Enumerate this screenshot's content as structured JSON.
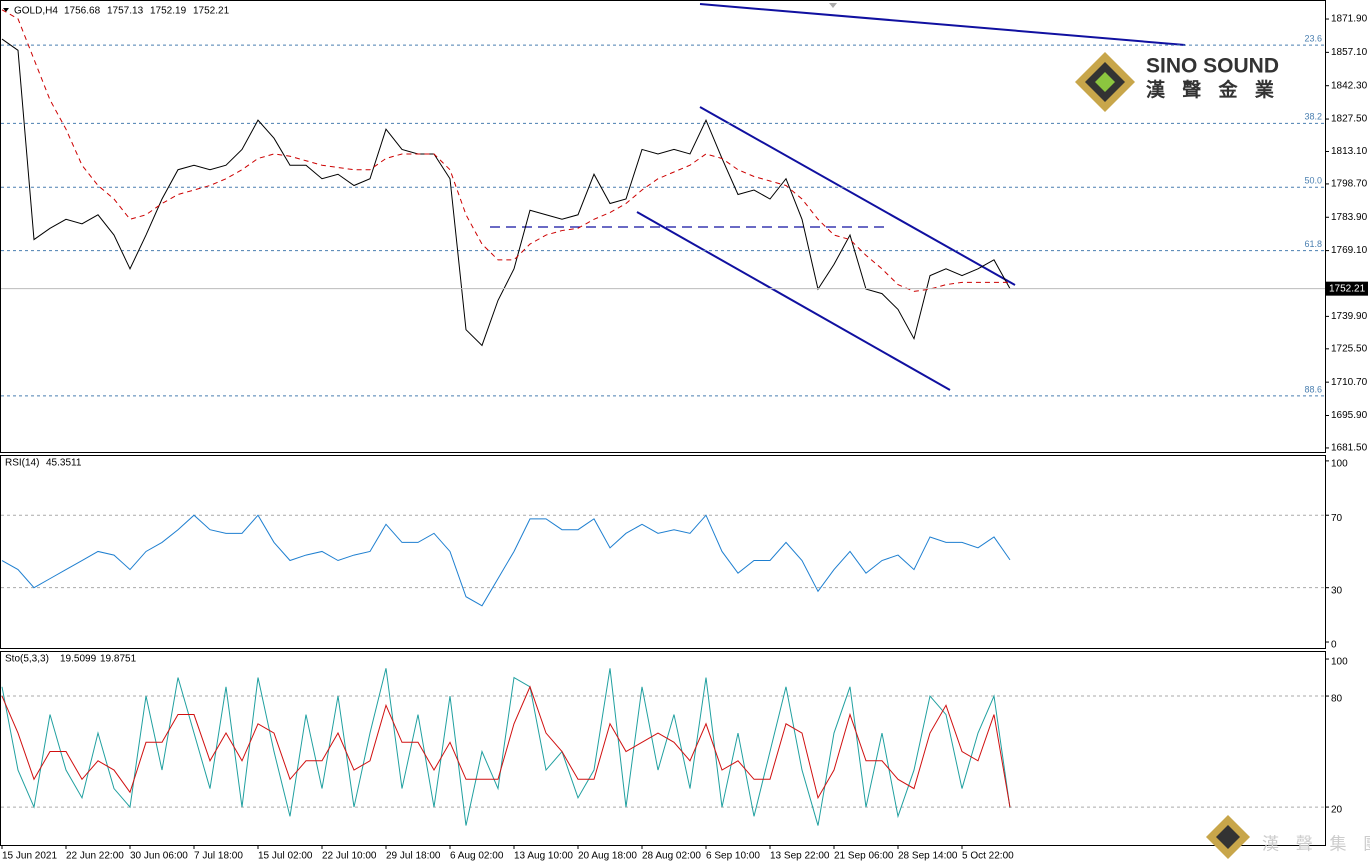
{
  "chart_data": [
    {
      "type": "line",
      "title": "GOLD,H4",
      "ohlc": [
        1756.68,
        1757.13,
        1752.19,
        1752.21
      ],
      "last_price": 1752.21,
      "categories": [
        "15 Jun 2021",
        null,
        null,
        null,
        "22 Jun 22:00",
        null,
        null,
        null,
        "30 Jun 06:00",
        null,
        null,
        null,
        "7 Jul 18:00",
        null,
        null,
        null,
        "15 Jul 02:00",
        null,
        null,
        null,
        "22 Jul 10:00",
        null,
        null,
        null,
        "29 Jul 18:00",
        null,
        null,
        null,
        "6 Aug 02:00",
        null,
        null,
        null,
        "13 Aug 10:00",
        null,
        null,
        null,
        "20 Aug 18:00",
        null,
        null,
        null,
        "28 Aug 02:00",
        null,
        null,
        null,
        "6 Sep 10:00",
        null,
        null,
        null,
        "13 Sep 22:00",
        null,
        null,
        null,
        "21 Sep 06:00",
        null,
        null,
        null,
        "28 Sep 14:00",
        null,
        null,
        null,
        "5 Oct 22:00",
        null,
        null,
        null
      ],
      "series": [
        {
          "color": "#000000",
          "values": [
            1863,
            1858,
            1774,
            1779,
            1783,
            1781,
            1785,
            1776,
            1761,
            1776,
            1792,
            1805,
            1807,
            1805,
            1807,
            1814,
            1827,
            1819,
            1807,
            1807,
            1801,
            1803,
            1798,
            1801,
            1823,
            1814,
            1812,
            1812,
            1801,
            1734,
            1727,
            1747,
            1761,
            1787,
            1785,
            1783,
            1785,
            1803,
            1790,
            1792,
            1814,
            1812,
            1814,
            1812,
            1827,
            1810,
            1794,
            1796,
            1792,
            1801,
            1783,
            1752,
            1763,
            1776,
            1752,
            1750,
            1743,
            1730,
            1758,
            1761,
            1758,
            1761,
            1765,
            1752.21
          ]
        },
        {
          "color": "#cc0000",
          "dashed": true,
          "values": [
            1876,
            1872,
            1854,
            1836,
            1823,
            1807,
            1798,
            1792,
            1783,
            1785,
            1790,
            1794,
            1796,
            1798,
            1801,
            1805,
            1810,
            1812,
            1811,
            1809,
            1807,
            1806,
            1805,
            1805,
            1810,
            1812,
            1812,
            1812,
            1805,
            1785,
            1772,
            1765,
            1765,
            1772,
            1776,
            1778,
            1779,
            1783,
            1786,
            1790,
            1796,
            1801,
            1804,
            1807,
            1812,
            1810,
            1805,
            1802,
            1800,
            1798,
            1792,
            1783,
            1776,
            1774,
            1767,
            1761,
            1754,
            1751,
            1752,
            1754,
            1755,
            1755,
            1755,
            1755
          ]
        }
      ],
      "ylim": [
        1679.7,
        1879.9
      ],
      "yticks": [
        {
          "value": 1871.9,
          "label": "1871.90"
        },
        {
          "value": 1857.1,
          "label": "1857.10"
        },
        {
          "value": 1842.3,
          "label": "1842.30"
        },
        {
          "value": 1827.5,
          "label": "1827.50"
        },
        {
          "value": 1813.1,
          "label": "1813.10"
        },
        {
          "value": 1798.7,
          "label": "1798.70"
        },
        {
          "value": 1783.9,
          "label": "1783.90"
        },
        {
          "value": 1769.1,
          "label": "1769.10"
        },
        {
          "value": 1739.9,
          "label": "1739.90"
        },
        {
          "value": 1725.5,
          "label": "1725.50"
        },
        {
          "value": 1710.7,
          "label": "1710.70"
        },
        {
          "value": 1695.9,
          "label": "1695.90"
        },
        {
          "value": 1681.5,
          "label": "1681.50"
        }
      ],
      "fib_levels": [
        {
          "label": "23.6",
          "price": 1860.3
        },
        {
          "label": "38.2",
          "price": 1825.6
        },
        {
          "label": "50.0",
          "price": 1797.2
        },
        {
          "label": "61.8",
          "price": 1769.1
        },
        {
          "label": "88.6",
          "price": 1704.6
        }
      ]
    },
    {
      "type": "line",
      "title": "RSI(14)",
      "current_value": 45.3511,
      "series": [
        {
          "color": "#1e7fd0",
          "values": [
            45,
            40,
            30,
            35,
            40,
            45,
            50,
            48,
            40,
            50,
            55,
            62,
            70,
            62,
            60,
            60,
            70,
            55,
            45,
            48,
            50,
            45,
            48,
            50,
            65,
            55,
            55,
            60,
            50,
            25,
            20,
            35,
            50,
            68,
            68,
            62,
            62,
            68,
            52,
            60,
            65,
            60,
            62,
            60,
            70,
            50,
            38,
            45,
            45,
            55,
            45,
            28,
            40,
            50,
            38,
            45,
            48,
            40,
            58,
            55,
            55,
            52,
            58,
            45.3511
          ]
        }
      ],
      "ylim": [
        -3.3,
        102.7
      ],
      "yticks": [
        0,
        30,
        70,
        100
      ],
      "levels": [
        30,
        70
      ]
    },
    {
      "type": "line",
      "title": "Sto(5,3,3)",
      "current_values": [
        19.5099,
        19.8751
      ],
      "series": [
        {
          "color": "#20a0a0",
          "values": [
            85,
            40,
            20,
            70,
            40,
            25,
            60,
            30,
            20,
            80,
            40,
            90,
            60,
            30,
            85,
            20,
            90,
            50,
            15,
            70,
            30,
            80,
            20,
            60,
            95,
            30,
            70,
            20,
            80,
            10,
            50,
            30,
            90,
            85,
            40,
            50,
            25,
            40,
            95,
            20,
            85,
            40,
            70,
            30,
            90,
            20,
            60,
            15,
            50,
            85,
            40,
            10,
            60,
            85,
            20,
            60,
            15,
            40,
            80,
            70,
            30,
            60,
            80,
            19.5099
          ]
        },
        {
          "color": "#d01010",
          "values": [
            80,
            60,
            35,
            50,
            50,
            35,
            45,
            40,
            28,
            55,
            55,
            70,
            70,
            45,
            60,
            45,
            65,
            60,
            35,
            45,
            45,
            60,
            40,
            45,
            75,
            55,
            55,
            40,
            55,
            35,
            35,
            35,
            65,
            85,
            60,
            50,
            35,
            35,
            65,
            50,
            55,
            60,
            55,
            45,
            65,
            40,
            45,
            35,
            35,
            65,
            60,
            25,
            40,
            70,
            45,
            45,
            35,
            30,
            60,
            75,
            50,
            45,
            70,
            19.8751
          ]
        }
      ],
      "ylim": [
        -0.5,
        103.8
      ],
      "yticks": [
        20,
        80,
        100
      ],
      "levels": [
        20,
        80
      ]
    }
  ],
  "logo": {
    "brand": "SINO SOUND",
    "chinese": "漢 聲 金 業"
  },
  "footer_logo": "漢 聲 集 團"
}
